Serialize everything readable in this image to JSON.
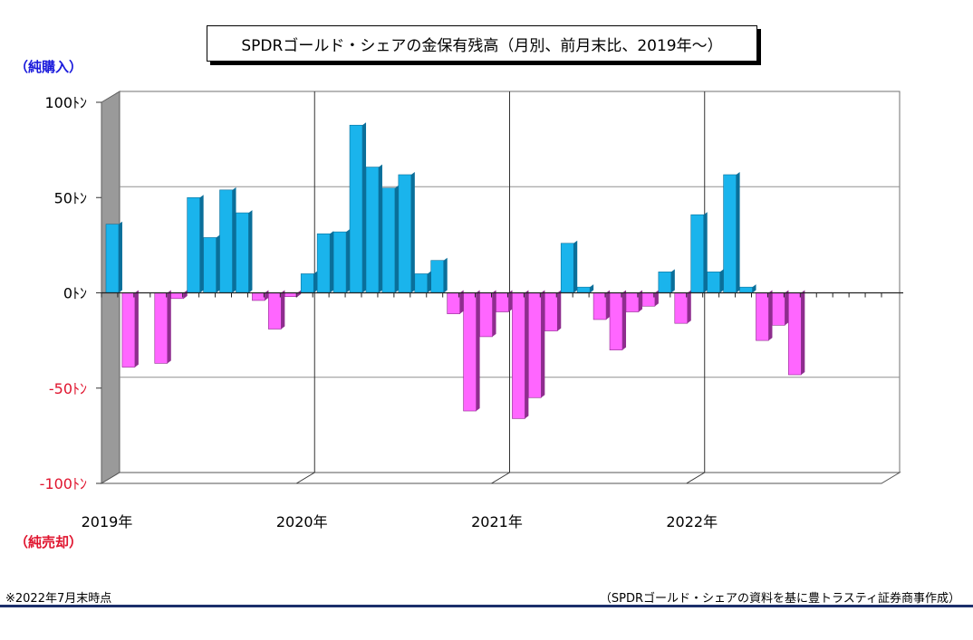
{
  "header": {
    "title": "SPDRゴールド・シェアの金保有残高（月別、前月末比、2019年～）",
    "buy_label": "（純購入）",
    "sell_label": "（純売却）"
  },
  "footer": {
    "note": "※2022年7月末時点",
    "source": "（SPDRゴールド・シェアの資料を基に豊トラスティ証券商事作成）"
  },
  "colors": {
    "positive": "#1ab4ec",
    "positive_dark": "#0a6f9a",
    "negative": "#ff66ff",
    "negative_dark": "#8e2d8e",
    "wall": "#9a9a9a",
    "grid": "#909090"
  },
  "chart_data": {
    "type": "bar",
    "title": "SPDRゴールド・シェアの金保有残高（月別、前月末比、2019年～）",
    "unit": "トン",
    "ylim": [
      -100,
      100
    ],
    "yticks": [
      {
        "value": 100,
        "label": "100ﾄﾝ",
        "color": "#000000"
      },
      {
        "value": 50,
        "label": "50ﾄﾝ",
        "color": "#000000"
      },
      {
        "value": 0,
        "label": "0ﾄﾝ",
        "color": "#000000"
      },
      {
        "value": -50,
        "label": "-50ﾄﾝ",
        "color": "#e0142e"
      },
      {
        "value": -100,
        "label": "-100ﾄﾝ",
        "color": "#e0142e"
      }
    ],
    "year_labels": [
      "2019年",
      "2020年",
      "2021年",
      "2022年"
    ],
    "months_total": 48,
    "grid": true,
    "categories": [
      "2019-01",
      "2019-02",
      "2019-03",
      "2019-04",
      "2019-05",
      "2019-06",
      "2019-07",
      "2019-08",
      "2019-09",
      "2019-10",
      "2019-11",
      "2019-12",
      "2020-01",
      "2020-02",
      "2020-03",
      "2020-04",
      "2020-05",
      "2020-06",
      "2020-07",
      "2020-08",
      "2020-09",
      "2020-10",
      "2020-11",
      "2020-12",
      "2021-01",
      "2021-02",
      "2021-03",
      "2021-04",
      "2021-05",
      "2021-06",
      "2021-07",
      "2021-08",
      "2021-09",
      "2021-10",
      "2021-11",
      "2021-12",
      "2022-01",
      "2022-02",
      "2022-03",
      "2022-04",
      "2022-05",
      "2022-06",
      "2022-07"
    ],
    "values": [
      36,
      -39,
      0,
      -37,
      -3,
      50,
      29,
      54,
      42,
      -4,
      -19,
      -2,
      10,
      31,
      32,
      88,
      66,
      55,
      62,
      10,
      17,
      -11,
      -62,
      -23,
      -10,
      -66,
      -55,
      -20,
      26,
      3,
      -14,
      -30,
      -10,
      -7,
      11,
      -16,
      41,
      11,
      62,
      3,
      -25,
      -17,
      -43
    ]
  }
}
